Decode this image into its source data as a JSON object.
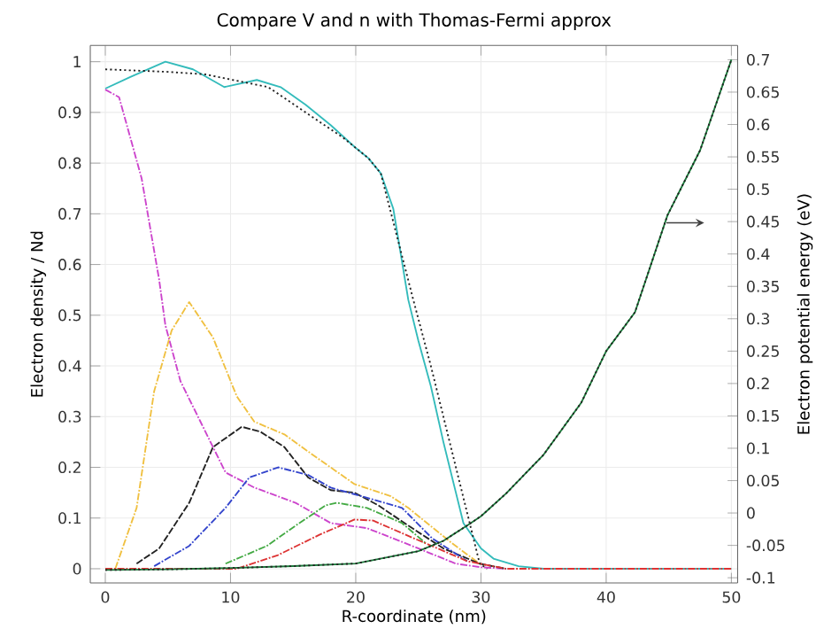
{
  "chart_data": {
    "type": "line",
    "title": "Compare V and n with Thomas-Fermi approx",
    "xlabel": "R-coordinate (nm)",
    "ylabel": "Electron density / Nd",
    "y2label": "Electron potential energy (eV)",
    "xlim": [
      -1.2,
      50.5
    ],
    "xticks": [
      0,
      10,
      20,
      30,
      40,
      50
    ],
    "ylim": [
      -0.028,
      1.032
    ],
    "yticks": [
      0,
      0.1,
      0.2,
      0.3,
      0.4,
      0.5,
      0.6,
      0.7,
      0.8,
      0.9,
      1
    ],
    "y2lim": [
      -0.108,
      0.722
    ],
    "y2ticks": [
      -0.1,
      -0.05,
      0,
      0.05,
      0.1,
      0.15,
      0.2,
      0.25,
      0.3,
      0.35,
      0.4,
      0.45,
      0.5,
      0.55,
      0.6,
      0.65,
      0.7
    ],
    "grid": true,
    "series": [
      {
        "color": "#33bbbb",
        "line_style": "solid",
        "x": [
          0,
          2,
          4.8,
          7,
          9.5,
          12.1,
          14,
          16,
          18,
          20,
          21,
          22,
          23,
          24.2,
          25,
          26,
          27,
          28,
          28.6,
          30,
          31,
          33,
          35,
          50
        ],
        "values": [
          0.947,
          0.97,
          1.0,
          0.985,
          0.95,
          0.964,
          0.95,
          0.915,
          0.875,
          0.83,
          0.81,
          0.78,
          0.71,
          0.53,
          0.45,
          0.36,
          0.25,
          0.15,
          0.09,
          0.04,
          0.02,
          0.005,
          0,
          0
        ]
      },
      {
        "color": "#222222",
        "line_style": "dotted",
        "x": [
          0,
          5,
          8,
          10,
          13,
          16,
          19,
          21,
          22,
          24.6,
          26,
          27,
          28,
          29,
          29.9,
          30.5
        ],
        "values": [
          0.985,
          0.98,
          0.975,
          0.965,
          0.95,
          0.9,
          0.85,
          0.81,
          0.78,
          0.53,
          0.4,
          0.3,
          0.2,
          0.1,
          0.01,
          0
        ]
      },
      {
        "color": "#cc44cc",
        "line_style": "dashdot",
        "x": [
          0,
          1.1,
          2.9,
          4.3,
          4.8,
          6,
          7.6,
          9.6,
          11.9,
          15.2,
          18,
          20.9,
          24,
          26,
          28,
          30,
          32
        ],
        "values": [
          0.945,
          0.93,
          0.77,
          0.57,
          0.48,
          0.37,
          0.29,
          0.19,
          0.16,
          0.13,
          0.09,
          0.08,
          0.05,
          0.03,
          0.01,
          0.003,
          0
        ]
      },
      {
        "color": "#f0c040",
        "line_style": "dashdot",
        "x": [
          0.8,
          2.5,
          3.9,
          5.3,
          6.7,
          8.6,
          10.5,
          11.9,
          14.3,
          16.6,
          19.9,
          22.8,
          24.2,
          27.7,
          29.9
        ],
        "values": [
          0,
          0.12,
          0.35,
          0.47,
          0.526,
          0.456,
          0.34,
          0.29,
          0.265,
          0.224,
          0.167,
          0.143,
          0.12,
          0.05,
          0.01
        ]
      },
      {
        "color": "#222222",
        "line_style": "dashed",
        "x": [
          2.5,
          4.3,
          6.7,
          8.6,
          10.9,
          12.4,
          14.3,
          16.2,
          18,
          19.9,
          21.8,
          24.2,
          27,
          29.9,
          32
        ],
        "values": [
          0.01,
          0.04,
          0.13,
          0.24,
          0.28,
          0.27,
          0.24,
          0.18,
          0.155,
          0.15,
          0.125,
          0.085,
          0.04,
          0.01,
          0
        ]
      },
      {
        "color": "#3344cc",
        "line_style": "dashdot",
        "x": [
          3.9,
          6.7,
          9.6,
          11.5,
          13.8,
          16.2,
          18,
          20.9,
          23.7,
          26.1,
          28.9
        ],
        "values": [
          0.005,
          0.045,
          0.12,
          0.18,
          0.2,
          0.185,
          0.16,
          0.14,
          0.12,
          0.06,
          0.015
        ]
      },
      {
        "color": "#44aa44",
        "line_style": "dashdot",
        "x": [
          9.6,
          12.9,
          15.2,
          17.6,
          18.5,
          20.9,
          23.7,
          25.6
        ],
        "values": [
          0.01,
          0.045,
          0.085,
          0.125,
          0.13,
          0.12,
          0.09,
          0.05
        ]
      },
      {
        "color": "#dd3333",
        "line_style": "dashdot",
        "x": [
          0,
          10.5,
          13.8,
          17.1,
          19.9,
          21.4,
          23.7,
          25.6,
          28.9,
          32,
          50
        ],
        "values": [
          0,
          0,
          0.027,
          0.067,
          0.097,
          0.095,
          0.07,
          0.05,
          0.015,
          0,
          0
        ]
      },
      {
        "color": "#1a7a3a",
        "line_style": "solid",
        "axis": "y2",
        "x": [
          0,
          5,
          10,
          15,
          20,
          25,
          27,
          29,
          30,
          32,
          35,
          38,
          40,
          42.3,
          44.9,
          47.5,
          50
        ],
        "values": [
          -0.088,
          -0.087,
          -0.085,
          -0.082,
          -0.078,
          -0.059,
          -0.043,
          -0.018,
          -0.005,
          0.03,
          0.09,
          0.17,
          0.25,
          0.31,
          0.46,
          0.56,
          0.7
        ]
      },
      {
        "color": "#222222",
        "line_style": "dotted",
        "axis": "y2",
        "x": [
          0,
          5,
          10,
          15,
          20,
          25,
          27,
          29,
          30,
          32,
          35,
          38,
          40,
          42.3,
          44.9,
          47.5,
          50
        ],
        "values": [
          -0.088,
          -0.087,
          -0.085,
          -0.082,
          -0.078,
          -0.059,
          -0.043,
          -0.018,
          -0.005,
          0.03,
          0.09,
          0.17,
          0.25,
          0.31,
          0.46,
          0.56,
          0.7
        ]
      }
    ]
  }
}
